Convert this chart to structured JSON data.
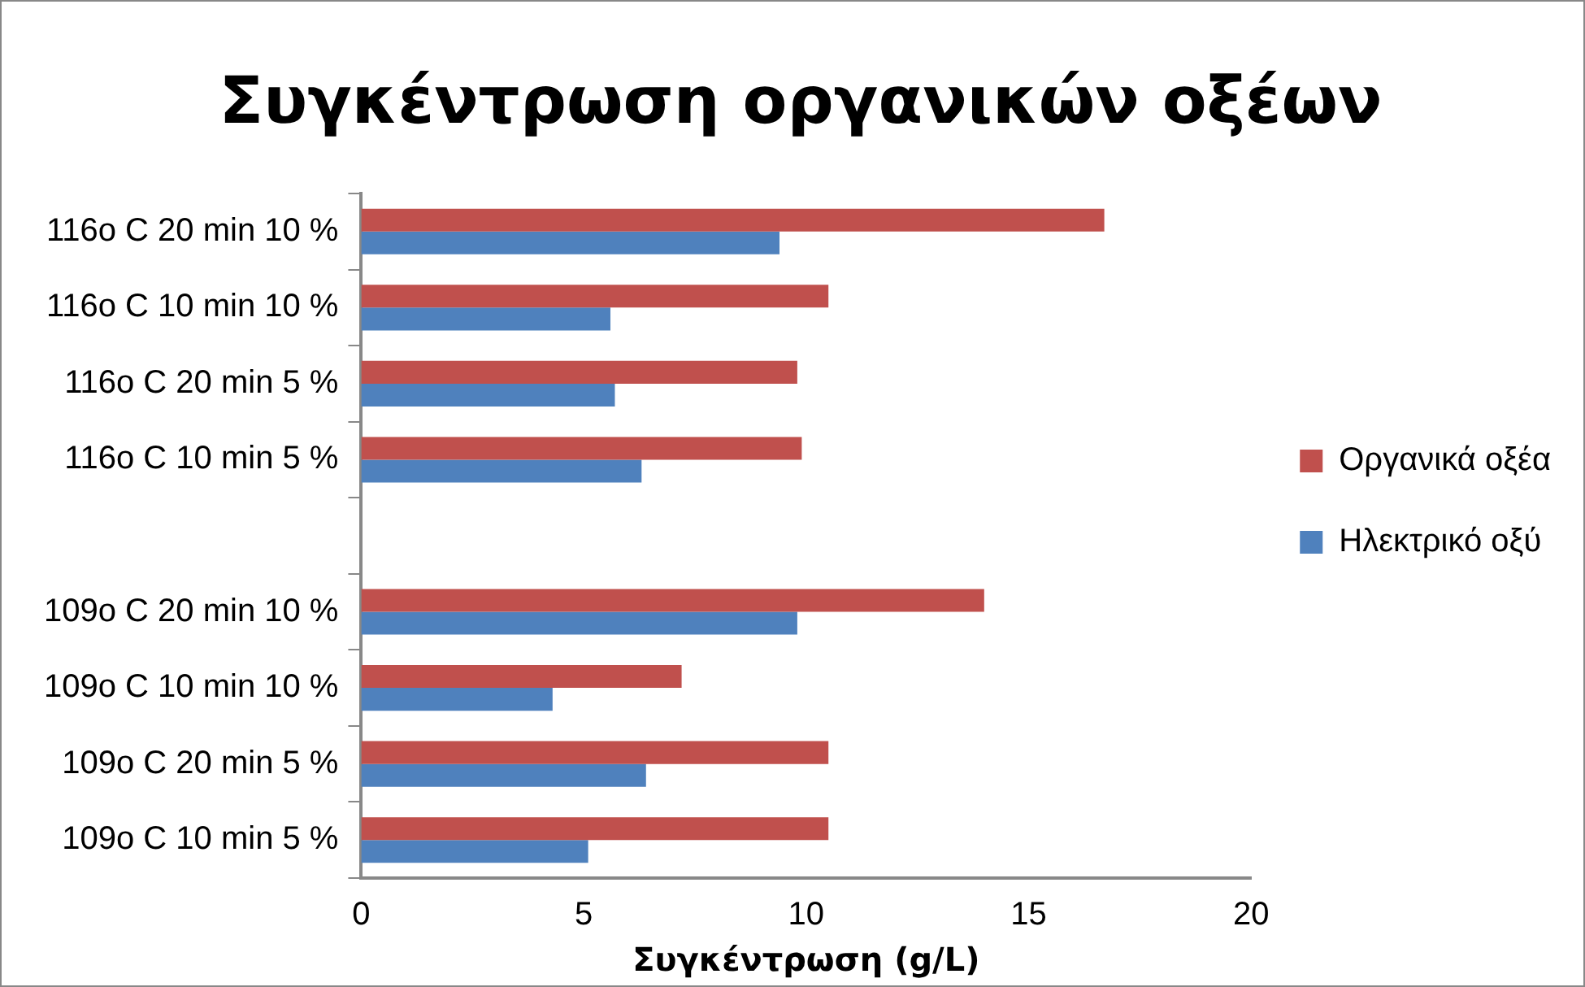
{
  "chart_data": {
    "type": "bar",
    "orientation": "horizontal",
    "title": "Συγκέντρωση οργανικών οξέων",
    "xlabel": "Συγκέντρωση (g/L)",
    "categories": [
      "116o C 20 min 10 %",
      "116o C 10 min 10 %",
      "116o C 20 min 5 %",
      "116o C 10 min 5 %",
      null,
      "109o C 20 min 10 %",
      "109o C 10 min 10 %",
      "109o C 20 min 5 %",
      "109o C 10 min 5 %"
    ],
    "series": [
      {
        "name": "Οργανικά οξέα",
        "color": "#c0504d",
        "values": [
          16.7,
          10.5,
          9.8,
          9.9,
          null,
          14.0,
          7.2,
          10.5,
          10.5
        ]
      },
      {
        "name": "Ηλεκτρικό οξύ",
        "color": "#4f81bd",
        "values": [
          9.4,
          5.6,
          5.7,
          6.3,
          null,
          9.8,
          4.3,
          6.4,
          5.1
        ]
      }
    ],
    "xlim": [
      0,
      20
    ],
    "xticks": [
      0,
      5,
      10,
      15,
      20
    ],
    "grid": false,
    "legend": "right"
  }
}
